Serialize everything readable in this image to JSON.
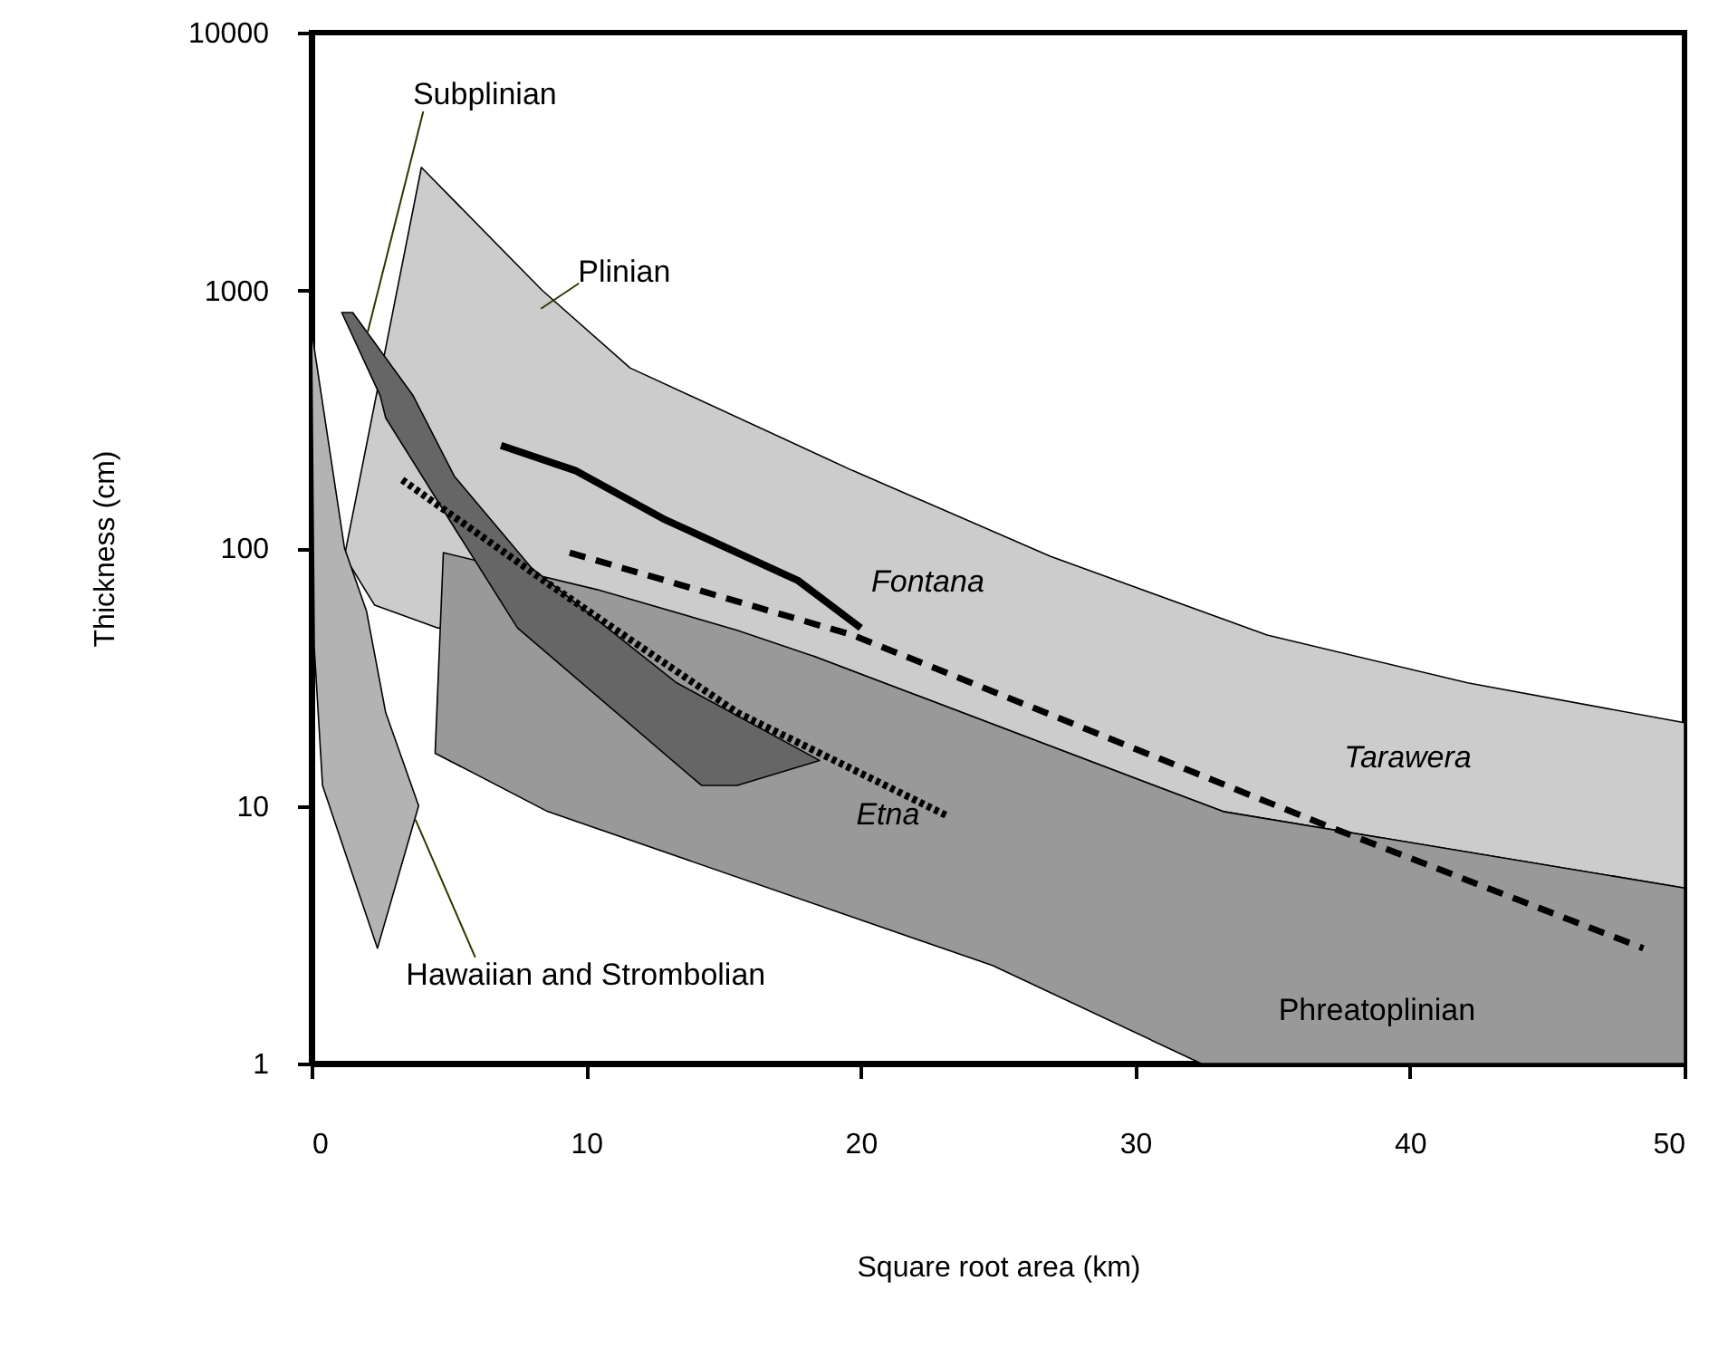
{
  "chart_data": {
    "type": "line",
    "xlabel": "Square root area (km)",
    "ylabel": "Thickness (cm)",
    "xlim": [
      0,
      50
    ],
    "xticks": [
      0,
      10,
      20,
      30,
      40,
      50
    ],
    "ylim": [
      1,
      10000
    ],
    "yticks": [
      1,
      10,
      100,
      1000,
      10000
    ],
    "log": "y",
    "grid": false,
    "series": [
      {
        "name": "Plinian",
        "type": "area",
        "color": "#cccccc",
        "x": [
          1.2,
          4.0,
          8.4,
          11.6,
          19.7,
          26.9,
          34.8,
          42.1,
          50,
          50,
          36.8,
          33.2,
          18.3,
          4.6,
          2.3
        ],
        "values": [
          93,
          3000,
          1000,
          500,
          200,
          93,
          46,
          30,
          21,
          4.8,
          8.2,
          9.5,
          38,
          49,
          60
        ]
      },
      {
        "name": "Hawaiian and Strombolian",
        "type": "area",
        "color": "#b3b3b3",
        "x": [
          0,
          1.2,
          2.0,
          2.7,
          3.9,
          2.4,
          0.4,
          0.1
        ],
        "values": [
          700,
          100,
          57,
          23,
          10,
          2.8,
          12,
          41
        ]
      },
      {
        "name": "Phreatoplinian",
        "type": "area",
        "color": "#999999",
        "x": [
          4.8,
          10.4,
          15.5,
          18.3,
          33.2,
          50,
          50,
          32.4,
          24.8,
          8.6,
          4.5
        ],
        "values": [
          96,
          69,
          48,
          38,
          9.5,
          4.8,
          1,
          1,
          2.4,
          9.5,
          16
        ]
      },
      {
        "name": "Subplinian",
        "type": "area",
        "color": "#666666",
        "x": [
          1.1,
          1.5,
          3.7,
          5.2,
          8.0,
          13.3,
          18.5,
          15.5,
          14.2,
          7.5,
          5.2,
          2.7,
          2.5
        ],
        "values": [
          820,
          820,
          390,
          190,
          84,
          30,
          15,
          12,
          12,
          49,
          120,
          320,
          390
        ]
      },
      {
        "name": "Fontana",
        "type": "line",
        "line_style": "solid",
        "color": "#000000",
        "x": [
          6.9,
          9.6,
          12.8,
          17.7,
          20.0
        ],
        "values": [
          250,
          200,
          130,
          75,
          49
        ]
      },
      {
        "name": "Tarawera",
        "type": "line",
        "line_style": "dashed",
        "color": "#000000",
        "x": [
          9.4,
          19.7,
          36.8,
          48.5
        ],
        "values": [
          96,
          46,
          8.5,
          2.8
        ]
      },
      {
        "name": "Etna",
        "type": "line",
        "line_style": "dotted",
        "color": "#000000",
        "x": [
          3.3,
          8.6,
          15.5,
          23.1
        ],
        "values": [
          184,
          73,
          23,
          9.2
        ]
      }
    ]
  }
}
